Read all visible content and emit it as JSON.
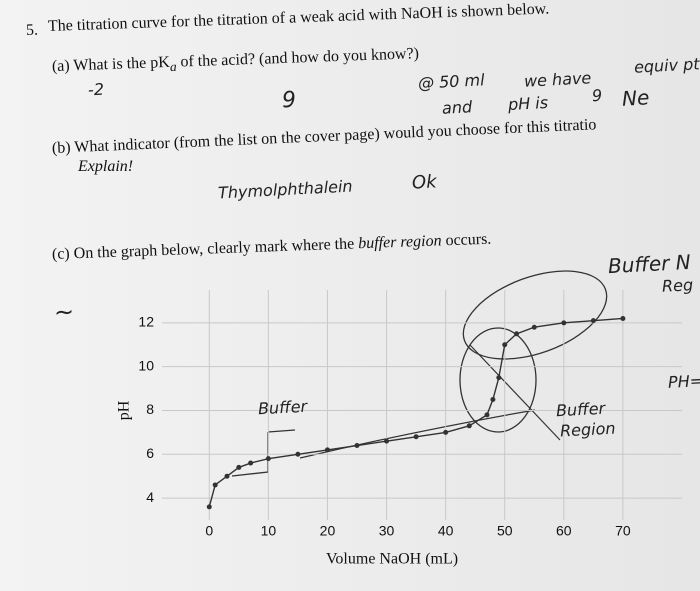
{
  "question": {
    "number": "5.",
    "text": "The titration curve for the titration of a weak acid with NaOH is shown below.",
    "parts": [
      {
        "label": "(a)",
        "text_before": "What is the pK",
        "subscript": "a",
        "text_after": "of the acid? (and how do you know?)"
      },
      {
        "label": "(b)",
        "text": "What indicator (from the list on the cover page) would you choose for this titratio",
        "explain": "Explain!"
      },
      {
        "label": "(c)",
        "text_before": "On the graph below, clearly mark where the",
        "emphasis": "buffer region",
        "text_after": "occurs."
      }
    ]
  },
  "handwriting": {
    "a_answer": "-2",
    "a_pka": "9",
    "a_at": "@ 50 ml",
    "a_we_have": "we have",
    "a_equiv": "equiv pt",
    "a_and": "and",
    "a_ph_is": "pH is",
    "a_nine": "9",
    "a_ne": "Ne",
    "b_indicator": "Thymolphthalein",
    "b_ok": "Ok",
    "c_buffer_n": "Buffer N",
    "c_reg": "Reg",
    "c_tilde": "~",
    "graph_buffer": "Buffer",
    "graph_buffer2": "Buffer",
    "graph_region": "Region",
    "graph_ph": "PH="
  },
  "graph": {
    "type": "line",
    "x_label": "Volume NaOH (mL)",
    "y_label": "pH",
    "x": [
      0,
      1,
      3,
      5,
      7,
      10,
      15,
      20,
      25,
      30,
      35,
      40,
      44,
      47,
      48,
      49,
      50,
      52,
      55,
      60,
      65,
      70
    ],
    "y": [
      3.6,
      4.6,
      5.0,
      5.4,
      5.6,
      5.8,
      6.0,
      6.2,
      6.4,
      6.6,
      6.8,
      7.0,
      7.3,
      7.8,
      8.5,
      9.5,
      11.0,
      11.5,
      11.8,
      12.0,
      12.1,
      12.2
    ],
    "color": "#333333",
    "xlim": [
      -8,
      80
    ],
    "ylim": [
      3,
      13.5
    ],
    "xticks": [
      0,
      10,
      20,
      30,
      40,
      50,
      60,
      70
    ],
    "yticks": [
      4,
      6,
      8,
      10,
      12
    ],
    "grid": true
  }
}
